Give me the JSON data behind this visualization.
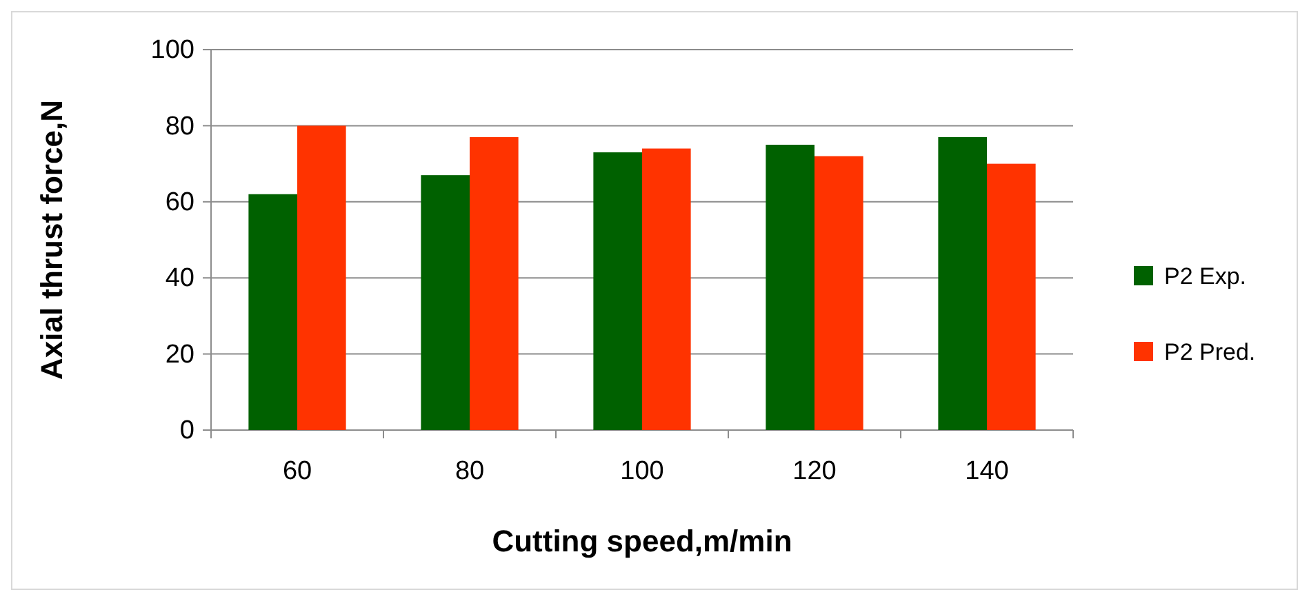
{
  "chart_data": {
    "type": "bar",
    "xlabel": "Cutting speed,m/min",
    "ylabel": "Axial thrust force,N",
    "categories": [
      "60",
      "80",
      "100",
      "120",
      "140"
    ],
    "series": [
      {
        "name": "P2 Exp.",
        "color": "#006100",
        "values": [
          62,
          67,
          73,
          75,
          77
        ]
      },
      {
        "name": "P2 Pred.",
        "color": "#ff3300",
        "values": [
          80,
          77,
          74,
          72,
          70
        ]
      }
    ],
    "ylim": [
      0,
      100
    ],
    "yticks": [
      0,
      20,
      40,
      60,
      80,
      100
    ],
    "grid": "y",
    "legend": "right"
  }
}
